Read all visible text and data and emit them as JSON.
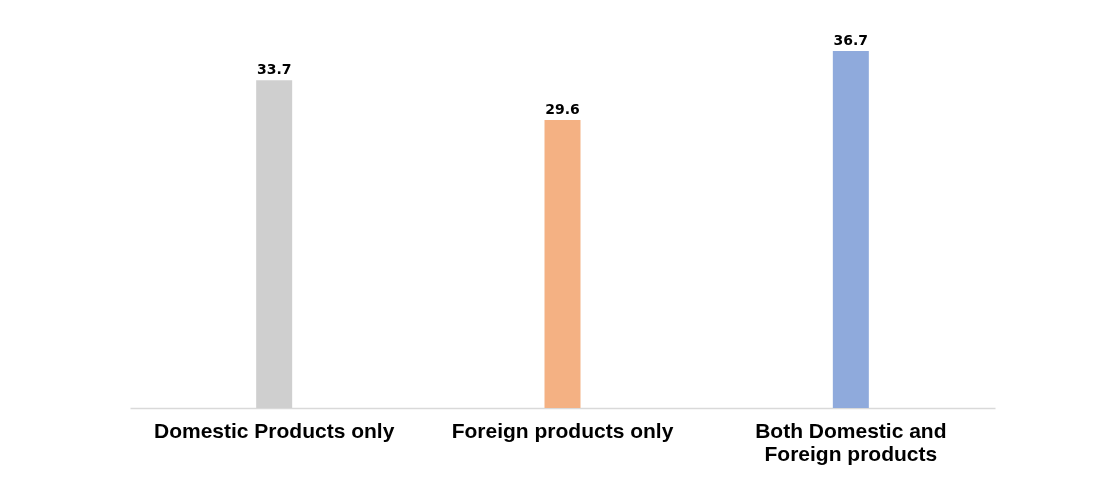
{
  "chart_data": {
    "type": "bar",
    "categories": [
      "Domestic Products only",
      "Foreign products only",
      "Both Domestic and Foreign products"
    ],
    "values": [
      33.7,
      29.6,
      36.7
    ],
    "colors": [
      "#cfcfcf",
      "#f4b183",
      "#8faadc"
    ],
    "data_labels": true
  }
}
